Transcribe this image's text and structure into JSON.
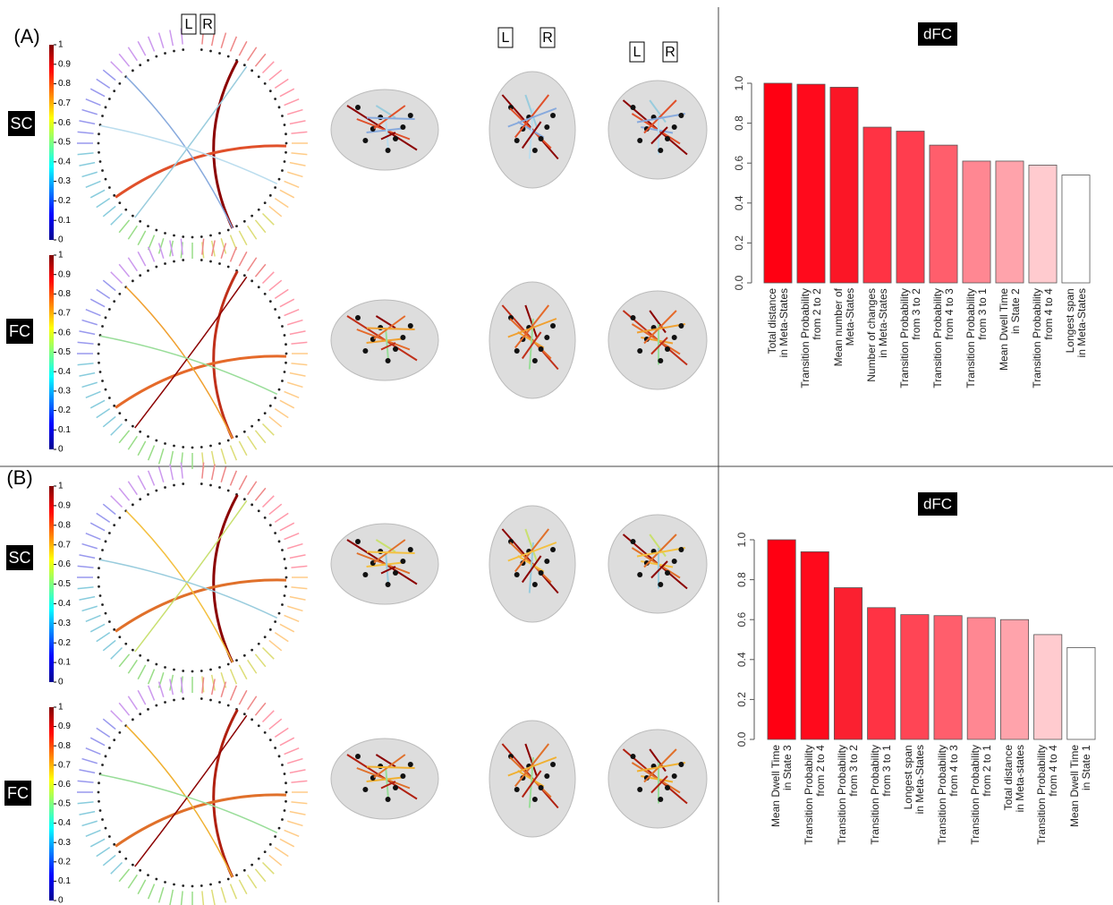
{
  "chart_data": [
    {
      "type": "bar",
      "title": "dFC",
      "categories": [
        "Total distance\nin Meta-States",
        "Transition Probability\nfrom 2 to 2",
        "Mean number of\nMeta-States",
        "Number of changes\nin Meta-States",
        "Transition Probability\nfrom 3 to 2",
        "Transition Probability\nfrom 4 to 3",
        "Transition Probability\nfrom 3 to 1",
        "Mean Dwell Time\nin State 2",
        "Transition Probability\nfrom 4 to 4",
        "Longest span\nin Meta-States"
      ],
      "values": [
        1.0,
        0.995,
        0.98,
        0.78,
        0.76,
        0.69,
        0.61,
        0.61,
        0.59,
        0.54
      ],
      "colors": [
        "#ff0012",
        "#ff0a1c",
        "#fb1626",
        "#ff3344",
        "#ff3d4e",
        "#ff5e6c",
        "#ff8792",
        "#ffa3ab",
        "#ffcbcf",
        "#ffffff"
      ],
      "ylim": [
        0,
        1
      ],
      "yticks": [
        {
          "value": 0,
          "label": "0.0"
        },
        0.2,
        0.4,
        0.6,
        0.8,
        {
          "value": 1,
          "label": "1.0"
        }
      ]
    },
    {
      "type": "bar",
      "title": "dFC",
      "categories": [
        "Mean Dwell Time\nin State 3",
        "Transition Probability\nfrom 2 to 4",
        "Transition Probability\nfrom 3 to 2",
        "Transition Probability\nfrom 3 to 1",
        "Longest span\nin Meta-States",
        "Transition Probability\nfrom 4 to 3",
        "Transition Probability\nfrom 2 to 1",
        "Total distance\nin Meta-states",
        "Transition Probability\nfrom 4 to 4",
        "Mean Dwell Time\nin State 1"
      ],
      "values": [
        1.0,
        0.94,
        0.76,
        0.66,
        0.625,
        0.62,
        0.61,
        0.6,
        0.525,
        0.46
      ],
      "colors": [
        "#ff0012",
        "#ff0a1c",
        "#fb2030",
        "#ff3344",
        "#ff4555",
        "#ff5e6c",
        "#ff8792",
        "#ffa3ab",
        "#ffcbcf",
        "#ffffff"
      ],
      "ylim": [
        0,
        1
      ],
      "yticks": [
        {
          "value": 0,
          "label": "0.0"
        },
        0.2,
        0.4,
        0.6,
        0.8,
        {
          "value": 1,
          "label": "1.0"
        }
      ]
    }
  ],
  "figure": {
    "panels": [
      {
        "label": "(A)",
        "orientation_labels": [
          [
            "L",
            "R"
          ],
          [
            "L",
            "R"
          ],
          [
            "L",
            "R"
          ]
        ],
        "rows": [
          {
            "label": "SC",
            "colorbar": {
              "lim": [
                0,
                1
              ],
              "ticks": [
                0,
                0.1,
                0.2,
                0.3,
                0.4,
                0.5,
                0.6,
                0.7,
                0.8,
                0.9,
                1
              ]
            }
          },
          {
            "label": "FC",
            "colorbar": {
              "lim": [
                0,
                1
              ],
              "ticks": [
                0,
                0.1,
                0.2,
                0.3,
                0.4,
                0.5,
                0.6,
                0.7,
                0.8,
                0.9,
                1
              ]
            }
          }
        ]
      },
      {
        "label": "(B)",
        "rows": [
          {
            "label": "SC",
            "colorbar": {
              "lim": [
                0,
                1
              ],
              "ticks": [
                0,
                0.1,
                0.2,
                0.3,
                0.4,
                0.5,
                0.6,
                0.7,
                0.8,
                0.9,
                1
              ]
            }
          },
          {
            "label": "FC",
            "colorbar": {
              "lim": [
                0,
                1
              ],
              "ticks": [
                0,
                0.1,
                0.2,
                0.3,
                0.4,
                0.5,
                0.6,
                0.7,
                0.8,
                0.9,
                1
              ]
            }
          }
        ]
      }
    ]
  }
}
